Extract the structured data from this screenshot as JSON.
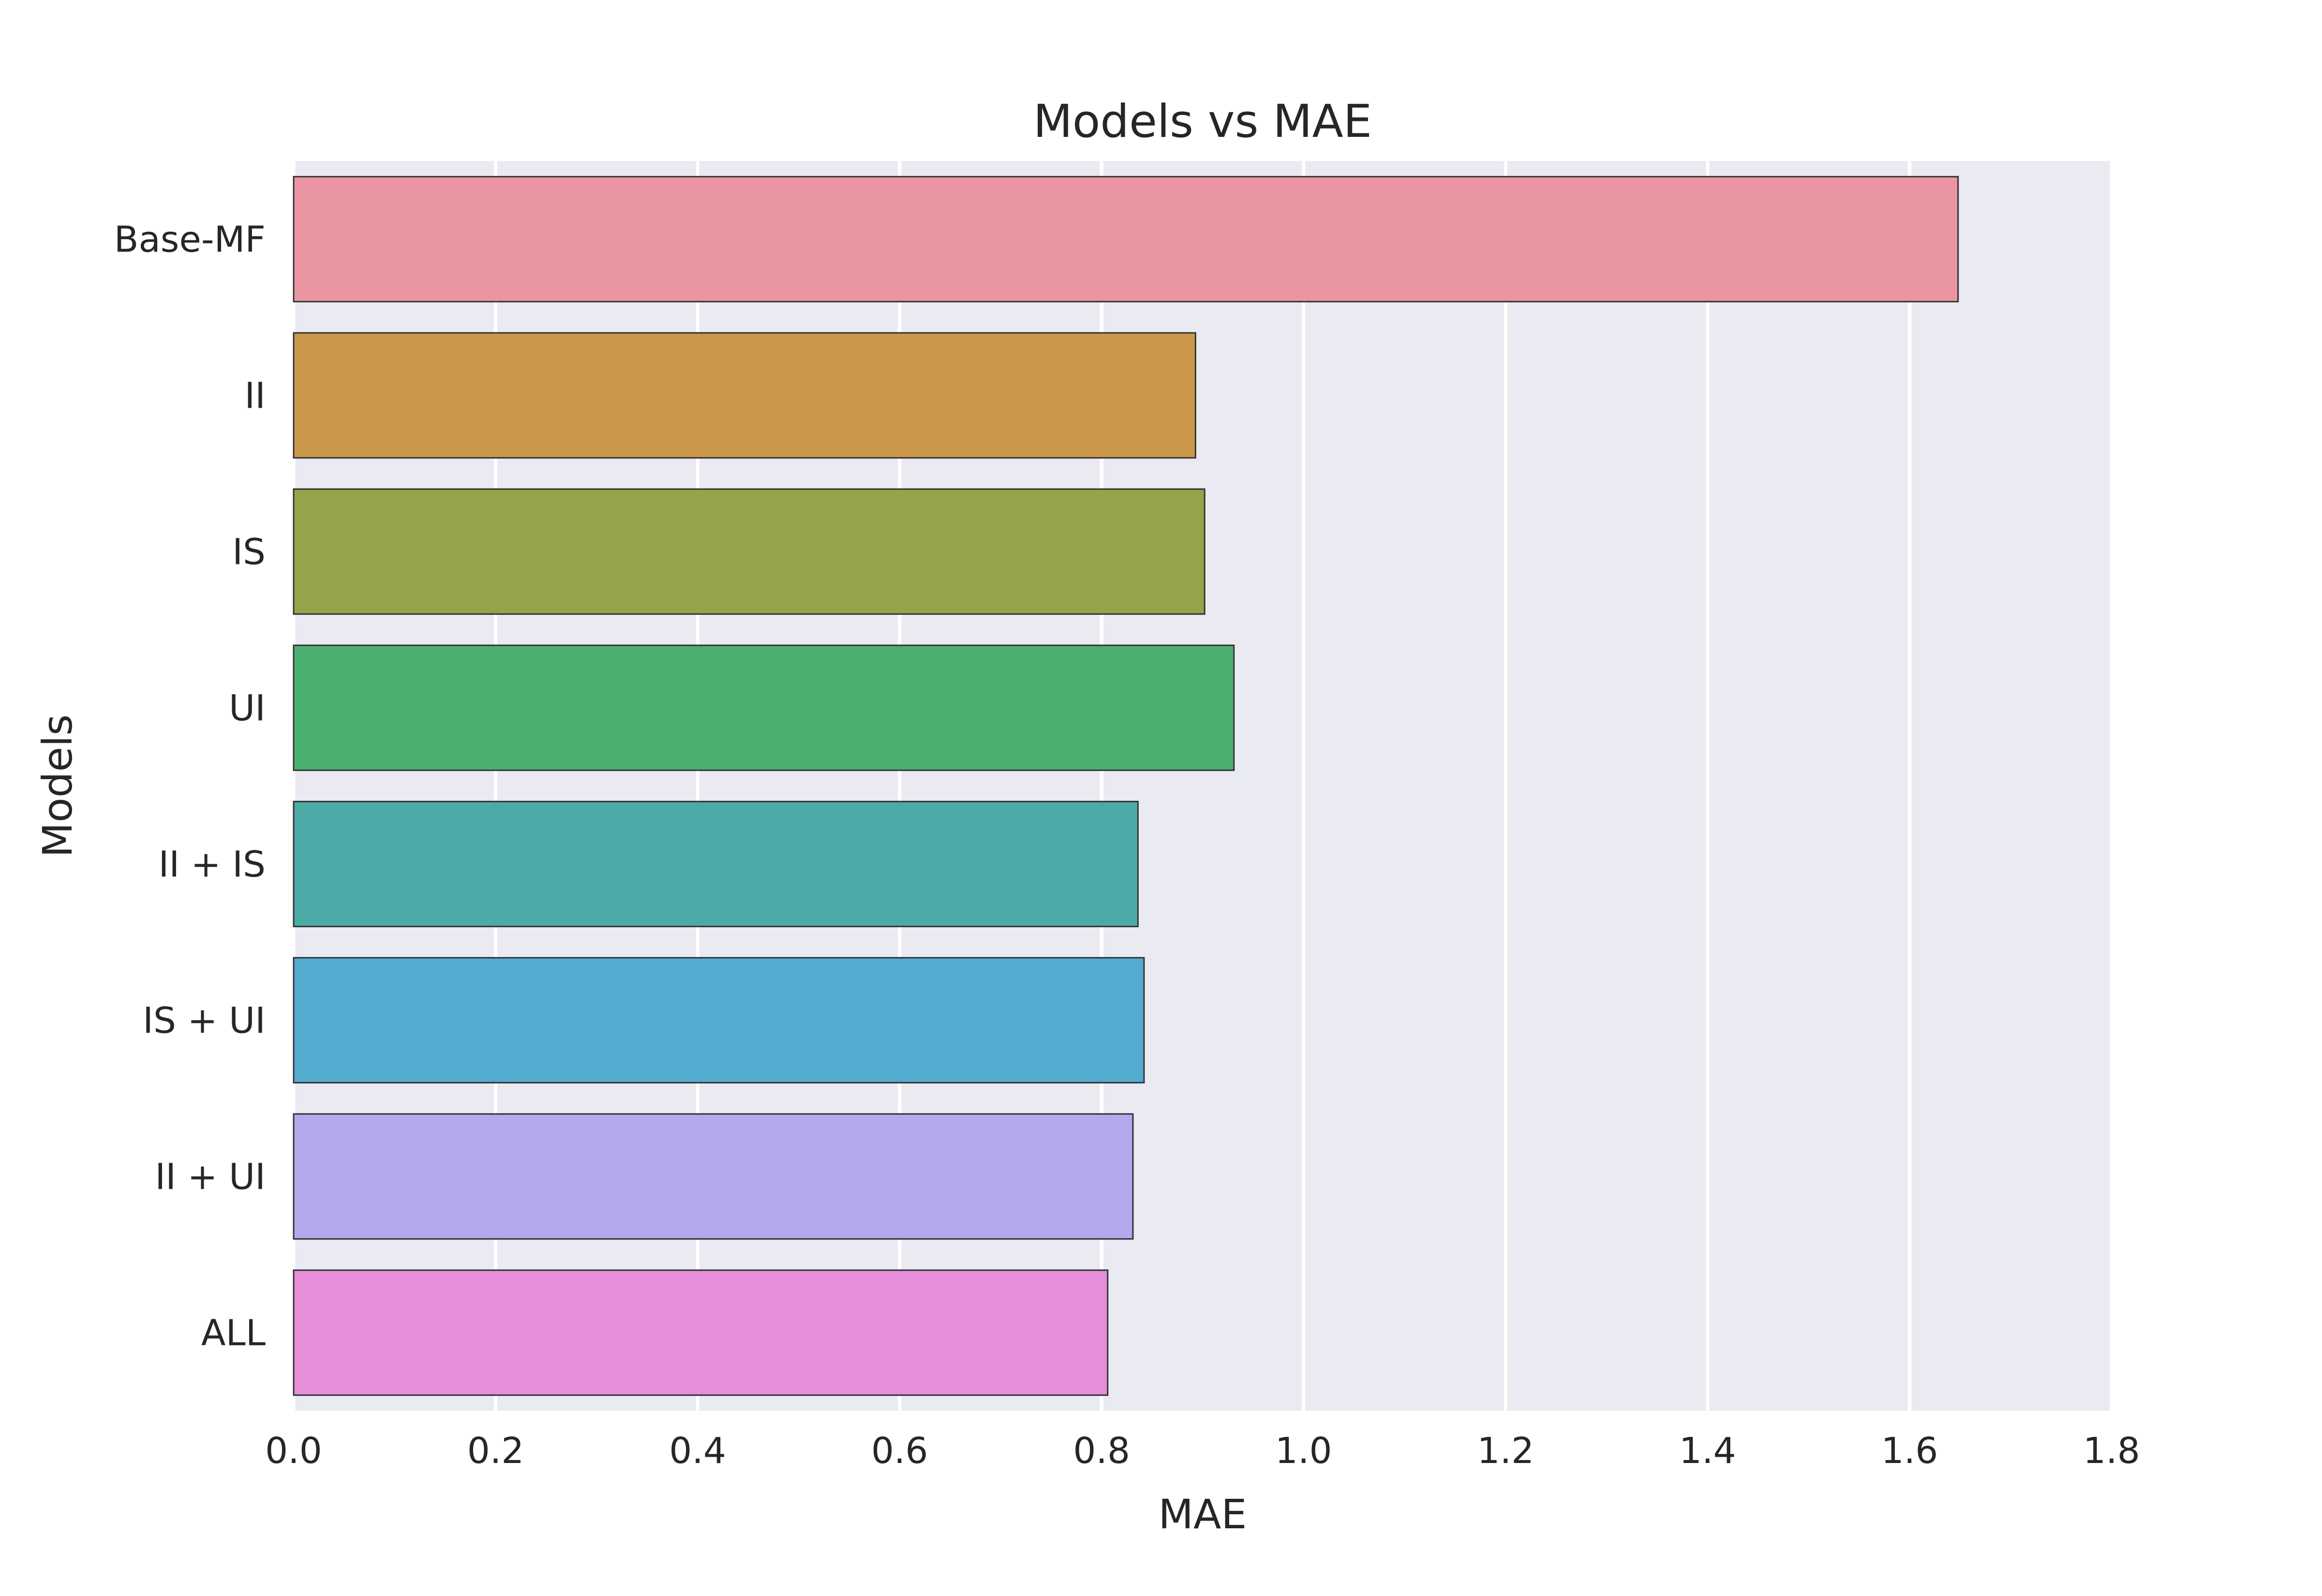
{
  "chart_data": {
    "type": "bar",
    "orientation": "horizontal",
    "title": "Models vs MAE",
    "xlabel": "MAE",
    "ylabel": "Models",
    "xlim": [
      0.0,
      1.8
    ],
    "xticks": [
      "0.0",
      "0.2",
      "0.4",
      "0.6",
      "0.8",
      "1.0",
      "1.2",
      "1.4",
      "1.6",
      "1.8"
    ],
    "grid": true,
    "categories": [
      "Base-MF",
      "II",
      "IS",
      "UI",
      "II + IS",
      "IS + UI",
      "II + UI",
      "ALL"
    ],
    "values": [
      1.648,
      0.893,
      0.902,
      0.931,
      0.836,
      0.842,
      0.831,
      0.806
    ],
    "colors": [
      "#ea96a2",
      "#cb974b",
      "#97a34a",
      "#4caf72",
      "#4caba6",
      "#53abd0",
      "#b5a8ec",
      "#e68ed9"
    ],
    "background": "#eaeaf2"
  }
}
